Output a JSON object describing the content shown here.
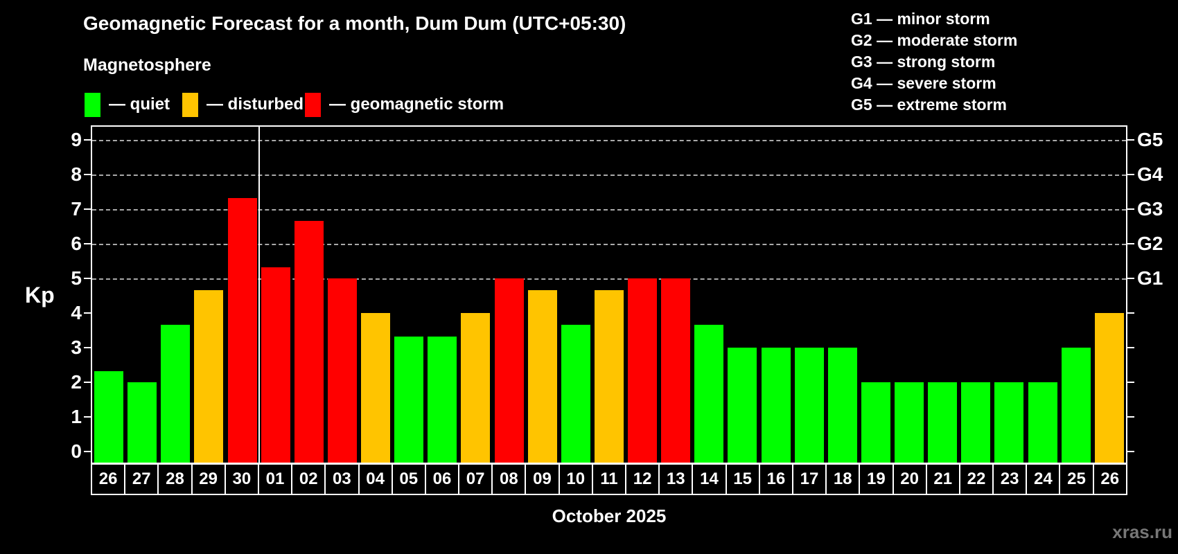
{
  "header": {
    "title": "Geomagnetic Forecast for a month, Dum Dum (UTC+05:30)",
    "subtitle": "Magnetosphere"
  },
  "legend": {
    "items": [
      {
        "id": "quiet",
        "label": "— quiet",
        "color": "#00ff00"
      },
      {
        "id": "disturbed",
        "label": "— disturbed",
        "color": "#ffc400"
      },
      {
        "id": "storm",
        "label": "— geomagnetic storm",
        "color": "#ff0000"
      }
    ]
  },
  "g_legend": [
    "G1 — minor storm",
    "G2 — moderate storm",
    "G3 — strong storm",
    "G4 — severe storm",
    "G5 — extreme storm"
  ],
  "axis": {
    "y_label": "Kp",
    "y_ticks": [
      0,
      1,
      2,
      3,
      4,
      5,
      6,
      7,
      8,
      9
    ],
    "right_labels": [
      {
        "value": 5,
        "label": "G1"
      },
      {
        "value": 6,
        "label": "G2"
      },
      {
        "value": 7,
        "label": "G3"
      },
      {
        "value": 8,
        "label": "G4"
      },
      {
        "value": 9,
        "label": "G5"
      }
    ]
  },
  "x_axis_title": "October 2025",
  "watermark": "xras.ru",
  "chart_data": {
    "type": "bar",
    "title": "Geomagnetic Forecast for a month, Dum Dum (UTC+05:30)",
    "xlabel": "October 2025",
    "ylabel": "Kp",
    "categories": [
      "26",
      "27",
      "28",
      "29",
      "30",
      "01",
      "02",
      "03",
      "04",
      "05",
      "06",
      "07",
      "08",
      "09",
      "10",
      "11",
      "12",
      "13",
      "14",
      "15",
      "16",
      "17",
      "18",
      "19",
      "20",
      "21",
      "22",
      "23",
      "24",
      "25",
      "26"
    ],
    "values": [
      2.33,
      2,
      3.67,
      4.67,
      7.33,
      5.33,
      6.67,
      5,
      4,
      3.33,
      3.33,
      4,
      5,
      4.67,
      3.67,
      4.67,
      5,
      5,
      3.67,
      3,
      3,
      3,
      3,
      2,
      2,
      2,
      2,
      2,
      2,
      3,
      4
    ],
    "statuses": [
      "quiet",
      "quiet",
      "quiet",
      "disturbed",
      "storm",
      "storm",
      "storm",
      "storm",
      "disturbed",
      "quiet",
      "quiet",
      "disturbed",
      "storm",
      "disturbed",
      "quiet",
      "disturbed",
      "storm",
      "storm",
      "quiet",
      "quiet",
      "quiet",
      "quiet",
      "quiet",
      "quiet",
      "quiet",
      "quiet",
      "quiet",
      "quiet",
      "quiet",
      "quiet",
      "disturbed"
    ],
    "status_colors": {
      "quiet": "#00ff00",
      "disturbed": "#ffc400",
      "storm": "#ff0000"
    },
    "ylim": [
      -0.32,
      9.38
    ],
    "gridline_values": [
      5,
      6,
      7,
      8,
      9
    ],
    "gridline_style": "dashed",
    "month_separator_after_index": 4,
    "legend_position": "top-left",
    "background": "#000000"
  }
}
